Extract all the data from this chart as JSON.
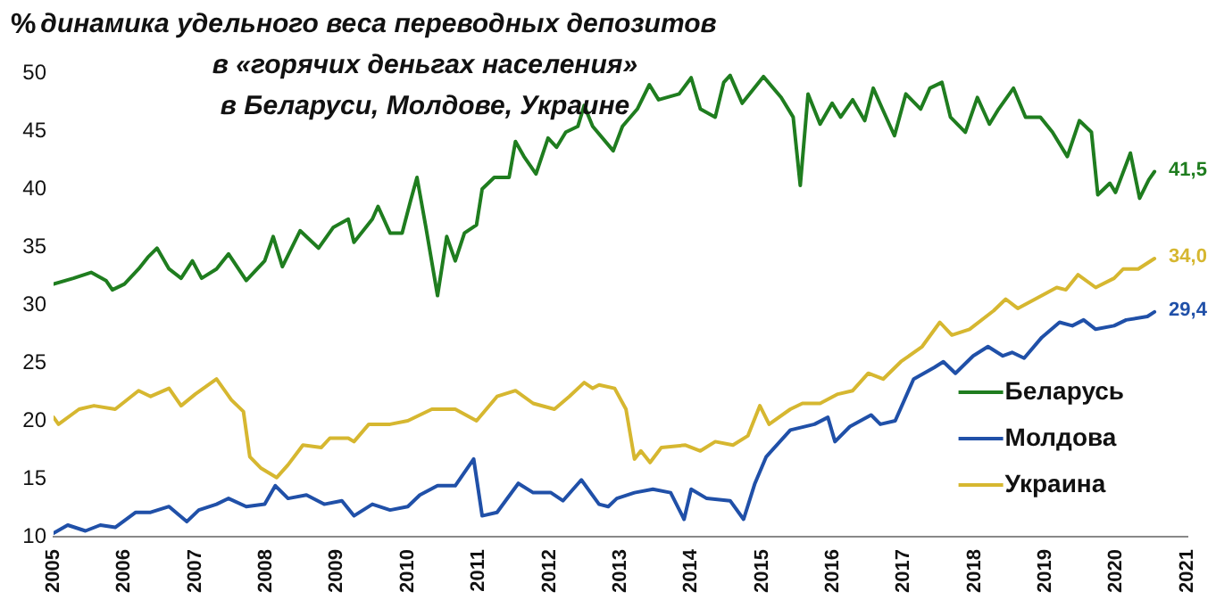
{
  "chart_data": {
    "type": "line",
    "title": "динамика удельного веса переводных депозитов\nв «горячих деньгах населения»\nв Беларуси, Молдове, Украине",
    "ylabel": "%",
    "series": [
      {
        "name": "Беларусь",
        "color": "#1f7d1f",
        "x": [
          2005.0,
          2005.28,
          2005.53,
          2005.74,
          2005.83,
          2006.0,
          2006.2,
          2006.33,
          2006.46,
          2006.63,
          2006.8,
          2006.96,
          2007.09,
          2007.3,
          2007.47,
          2007.72,
          2007.98,
          2008.1,
          2008.23,
          2008.48,
          2008.74,
          2008.95,
          2009.16,
          2009.24,
          2009.5,
          2009.58,
          2009.75,
          2009.92,
          2010.04,
          2010.13,
          2010.25,
          2010.42,
          2010.55,
          2010.67,
          2010.8,
          2010.97,
          2011.05,
          2011.22,
          2011.43,
          2011.52,
          2011.64,
          2011.81,
          2011.98,
          2012.1,
          2012.23,
          2012.4,
          2012.49,
          2012.61,
          2012.9,
          2013.03,
          2013.24,
          2013.41,
          2013.54,
          2013.83,
          2014.0,
          2014.13,
          2014.34,
          2014.46,
          2014.55,
          2014.72,
          2015.02,
          2015.27,
          2015.44,
          2015.54,
          2015.65,
          2015.82,
          2015.99,
          2016.11,
          2016.28,
          2016.45,
          2016.57,
          2016.7,
          2016.87,
          2017.03,
          2017.24,
          2017.37,
          2017.54,
          2017.66,
          2017.87,
          2018.04,
          2018.21,
          2018.34,
          2018.55,
          2018.72,
          2018.93,
          2019.1,
          2019.31,
          2019.48,
          2019.65,
          2019.74,
          2019.91,
          2019.99,
          2020.2,
          2020.33,
          2020.46,
          2020.54
        ],
        "values": [
          31.8,
          32.3,
          32.8,
          32.1,
          31.3,
          31.8,
          33.1,
          34.1,
          34.9,
          33.1,
          32.3,
          33.8,
          32.3,
          33.1,
          34.4,
          32.1,
          33.8,
          35.9,
          33.3,
          36.4,
          34.9,
          36.7,
          37.4,
          35.4,
          37.4,
          38.5,
          36.2,
          36.2,
          39.0,
          41.0,
          36.9,
          30.8,
          35.9,
          33.8,
          36.2,
          36.9,
          40.0,
          41.0,
          41.0,
          44.1,
          42.8,
          41.3,
          44.4,
          43.6,
          44.9,
          45.4,
          47.2,
          45.4,
          43.3,
          45.4,
          46.9,
          49.0,
          47.7,
          48.2,
          49.6,
          46.9,
          46.2,
          49.2,
          49.8,
          47.4,
          49.7,
          47.9,
          46.2,
          40.3,
          48.2,
          45.6,
          47.4,
          46.2,
          47.7,
          45.9,
          48.7,
          46.9,
          44.6,
          48.2,
          46.9,
          48.7,
          49.2,
          46.2,
          44.9,
          47.9,
          45.6,
          46.9,
          48.7,
          46.2,
          46.2,
          44.9,
          42.8,
          45.9,
          44.9,
          39.5,
          40.5,
          39.7,
          43.1,
          39.2,
          40.8,
          41.5
        ],
        "value_labels": [
          null,
          null,
          null,
          null,
          null,
          null,
          null,
          null,
          null,
          null,
          null,
          null,
          null,
          null,
          null,
          null,
          null,
          null,
          null,
          null,
          null,
          null,
          null,
          null,
          null,
          null,
          null,
          null,
          null,
          null,
          null,
          null,
          null,
          null,
          null,
          null,
          null,
          null,
          null,
          null,
          null,
          null,
          null,
          null,
          null,
          null,
          null,
          null,
          null,
          null,
          null,
          null,
          null,
          null,
          null,
          null,
          null,
          null,
          null,
          null,
          null,
          null,
          null,
          null,
          null,
          null,
          null,
          null,
          null,
          null,
          null,
          null,
          null,
          null,
          null,
          null,
          null,
          null,
          null,
          null,
          null,
          null,
          null,
          null,
          null,
          null,
          null,
          null,
          null,
          null,
          null,
          null,
          null,
          null,
          null,
          "41,5"
        ]
      },
      {
        "name": "Молдова",
        "color": "#2050a8",
        "x": [
          2005.0,
          2005.2,
          2005.45,
          2005.66,
          2005.87,
          2006.16,
          2006.37,
          2006.63,
          2006.88,
          2007.05,
          2007.3,
          2007.47,
          2007.72,
          2007.98,
          2008.13,
          2008.31,
          2008.57,
          2008.82,
          2009.07,
          2009.24,
          2009.5,
          2009.75,
          2010.0,
          2010.17,
          2010.42,
          2010.67,
          2010.93,
          2011.05,
          2011.26,
          2011.56,
          2011.77,
          2012.02,
          2012.19,
          2012.45,
          2012.7,
          2012.83,
          2012.95,
          2013.2,
          2013.46,
          2013.71,
          2013.9,
          2014.0,
          2014.22,
          2014.55,
          2014.74,
          2014.9,
          2015.06,
          2015.4,
          2015.74,
          2015.93,
          2016.03,
          2016.24,
          2016.54,
          2016.67,
          2016.88,
          2017.14,
          2017.43,
          2017.56,
          2017.73,
          2017.98,
          2018.19,
          2018.4,
          2018.53,
          2018.7,
          2018.95,
          2019.2,
          2019.38,
          2019.54,
          2019.71,
          2019.97,
          2020.14,
          2020.44,
          2020.54
        ],
        "values": [
          10.3,
          11.0,
          10.5,
          11.0,
          10.8,
          12.1,
          12.1,
          12.6,
          11.3,
          12.3,
          12.8,
          13.3,
          12.6,
          12.8,
          14.4,
          13.3,
          13.6,
          12.8,
          13.1,
          11.8,
          12.8,
          12.3,
          12.6,
          13.6,
          14.4,
          14.4,
          16.7,
          11.8,
          12.1,
          14.6,
          13.8,
          13.8,
          13.1,
          14.9,
          12.8,
          12.6,
          13.3,
          13.8,
          14.1,
          13.8,
          11.5,
          14.1,
          13.3,
          13.1,
          11.5,
          14.6,
          16.9,
          19.2,
          19.7,
          20.3,
          18.2,
          19.5,
          20.5,
          19.7,
          20.0,
          23.6,
          24.6,
          25.1,
          24.1,
          25.6,
          26.4,
          25.6,
          25.9,
          25.4,
          27.2,
          28.5,
          28.2,
          28.7,
          27.9,
          28.2,
          28.7,
          29.0,
          29.4
        ],
        "value_labels": [
          null,
          null,
          null,
          null,
          null,
          null,
          null,
          null,
          null,
          null,
          null,
          null,
          null,
          null,
          null,
          null,
          null,
          null,
          null,
          null,
          null,
          null,
          null,
          null,
          null,
          null,
          null,
          null,
          null,
          null,
          null,
          null,
          null,
          null,
          null,
          null,
          null,
          null,
          null,
          null,
          null,
          null,
          null,
          null,
          null,
          null,
          null,
          null,
          null,
          null,
          null,
          null,
          null,
          null,
          null,
          null,
          null,
          null,
          null,
          null,
          null,
          null,
          null,
          null,
          null,
          null,
          null,
          null,
          null,
          null,
          null,
          null,
          "29,4"
        ]
      },
      {
        "name": "Украина",
        "color": "#d6b730",
        "x": [
          2005.0,
          2005.07,
          2005.36,
          2005.57,
          2005.87,
          2006.2,
          2006.37,
          2006.63,
          2006.8,
          2007.0,
          2007.3,
          2007.51,
          2007.68,
          2007.77,
          2007.93,
          2008.15,
          2008.31,
          2008.52,
          2008.78,
          2008.9,
          2009.16,
          2009.24,
          2009.45,
          2009.75,
          2010.0,
          2010.34,
          2010.67,
          2010.97,
          2011.26,
          2011.52,
          2011.77,
          2012.07,
          2012.28,
          2012.49,
          2012.61,
          2012.7,
          2012.92,
          2013.08,
          2013.2,
          2013.29,
          2013.42,
          2013.58,
          2013.92,
          2014.13,
          2014.34,
          2014.59,
          2014.8,
          2014.97,
          2015.1,
          2015.4,
          2015.57,
          2015.82,
          2016.07,
          2016.28,
          2016.5,
          2016.71,
          2016.96,
          2017.26,
          2017.51,
          2017.68,
          2017.93,
          2018.27,
          2018.44,
          2018.61,
          2018.95,
          2019.16,
          2019.29,
          2019.46,
          2019.71,
          2019.97,
          2020.1,
          2020.31,
          2020.54
        ],
        "values": [
          20.3,
          19.7,
          21.0,
          21.3,
          21.0,
          22.6,
          22.1,
          22.8,
          21.3,
          22.3,
          23.6,
          21.8,
          20.8,
          16.9,
          15.9,
          15.1,
          16.2,
          17.9,
          17.7,
          18.5,
          18.5,
          18.2,
          19.7,
          19.7,
          20.0,
          21.0,
          21.0,
          20.0,
          22.1,
          22.6,
          21.5,
          21.0,
          22.1,
          23.3,
          22.8,
          23.1,
          22.8,
          21.0,
          16.7,
          17.4,
          16.4,
          17.7,
          17.9,
          17.4,
          18.2,
          17.9,
          18.7,
          21.3,
          19.7,
          21.0,
          21.5,
          21.5,
          22.3,
          22.6,
          24.1,
          23.6,
          25.1,
          26.4,
          28.5,
          27.4,
          27.9,
          29.5,
          30.5,
          29.7,
          30.8,
          31.5,
          31.3,
          32.6,
          31.5,
          32.3,
          33.1,
          33.1,
          34.0
        ],
        "value_labels": [
          null,
          null,
          null,
          null,
          null,
          null,
          null,
          null,
          null,
          null,
          null,
          null,
          null,
          null,
          null,
          null,
          null,
          null,
          null,
          null,
          null,
          null,
          null,
          null,
          null,
          null,
          null,
          null,
          null,
          null,
          null,
          null,
          null,
          null,
          null,
          null,
          null,
          null,
          null,
          null,
          null,
          null,
          null,
          null,
          null,
          null,
          null,
          null,
          null,
          null,
          null,
          null,
          null,
          null,
          null,
          null,
          null,
          null,
          null,
          null,
          null,
          null,
          null,
          null,
          null,
          null,
          null,
          null,
          null,
          null,
          null,
          null,
          "34,0"
        ]
      }
    ],
    "xlim": [
      2005,
      2021
    ],
    "xticks": [
      2005,
      2006,
      2007,
      2008,
      2009,
      2010,
      2011,
      2012,
      2013,
      2014,
      2015,
      2016,
      2017,
      2018,
      2019,
      2020,
      2021
    ],
    "ylim": [
      10,
      50
    ],
    "yticks": [
      10,
      15,
      20,
      25,
      30,
      35,
      40,
      45,
      50
    ],
    "grid": false,
    "legend": "bottom right",
    "marker": "none",
    "line_style": "solid"
  }
}
